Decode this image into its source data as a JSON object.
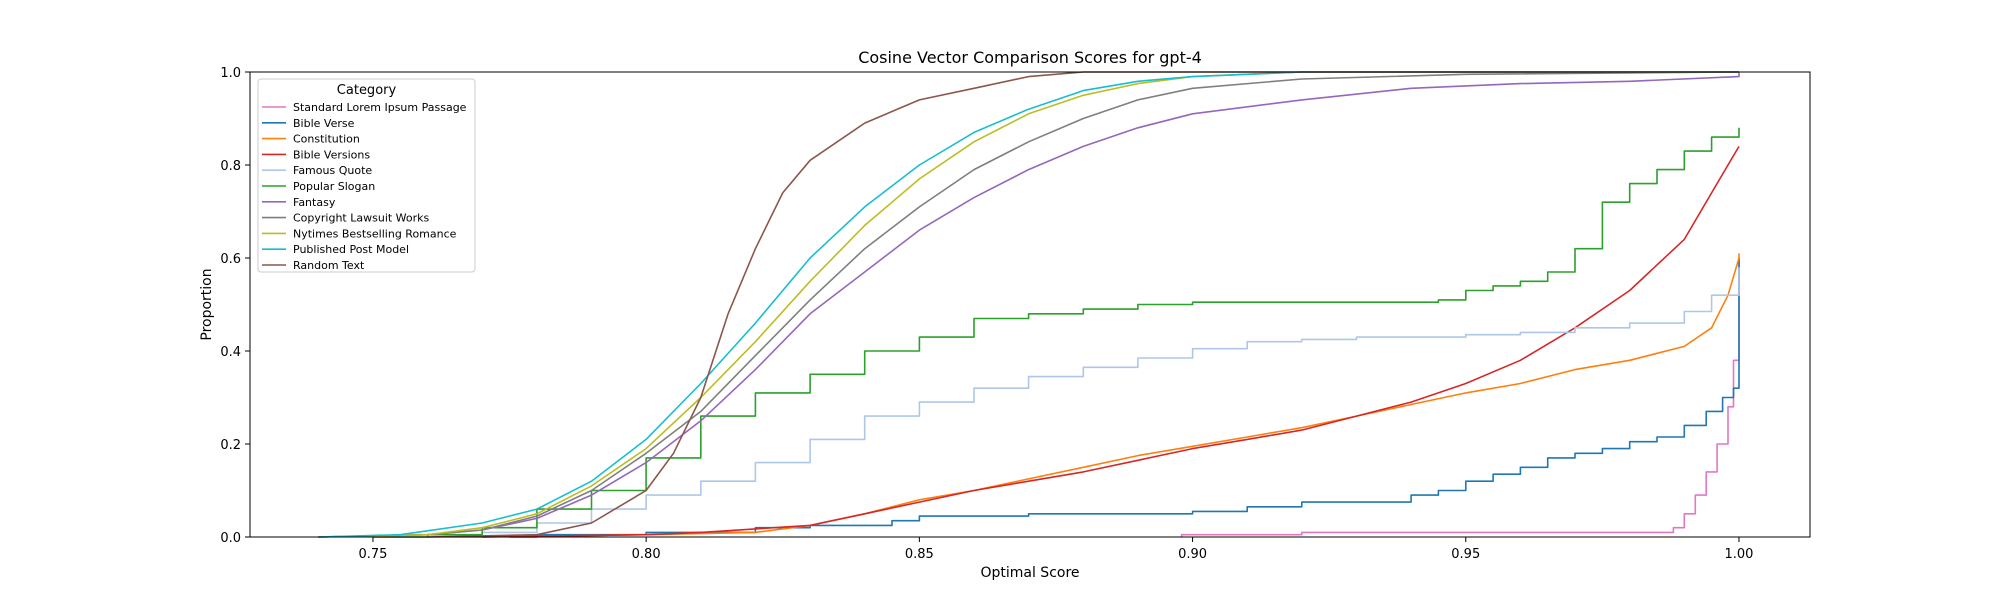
{
  "chart_data": {
    "type": "line",
    "title": "Cosine Vector Comparison Scores for gpt-4",
    "xlabel": "Optimal Score",
    "ylabel": "Proportion",
    "xlim": [
      0.7275,
      1.013
    ],
    "ylim": [
      0.0,
      1.0
    ],
    "xticks": [
      0.75,
      0.8,
      0.85,
      0.9,
      0.95,
      1.0
    ],
    "xtick_labels": [
      "0.75",
      "0.80",
      "0.85",
      "0.90",
      "0.95",
      "1.00"
    ],
    "yticks": [
      0.0,
      0.2,
      0.4,
      0.6,
      0.8,
      1.0
    ],
    "ytick_labels": [
      "0.0",
      "0.2",
      "0.4",
      "0.6",
      "0.8",
      "1.0"
    ],
    "grid": false,
    "legend": {
      "title": "Category",
      "placement": "top-left"
    },
    "series": [
      {
        "name": "Standard Lorem Ipsum Passage",
        "color": "#e377c2",
        "step": true,
        "points": [
          [
            0.898,
            0.0
          ],
          [
            0.898,
            0.005
          ],
          [
            0.92,
            0.005
          ],
          [
            0.92,
            0.01
          ],
          [
            0.986,
            0.01
          ],
          [
            0.988,
            0.02
          ],
          [
            0.99,
            0.05
          ],
          [
            0.992,
            0.09
          ],
          [
            0.994,
            0.14
          ],
          [
            0.996,
            0.2
          ],
          [
            0.998,
            0.28
          ],
          [
            0.999,
            0.38
          ],
          [
            1.0,
            0.4
          ],
          [
            1.0,
            0.6
          ]
        ]
      },
      {
        "name": "Bible Verse",
        "color": "#1f77b4",
        "step": true,
        "points": [
          [
            0.775,
            0.0
          ],
          [
            0.78,
            0.005
          ],
          [
            0.8,
            0.01
          ],
          [
            0.82,
            0.02
          ],
          [
            0.83,
            0.025
          ],
          [
            0.845,
            0.035
          ],
          [
            0.85,
            0.045
          ],
          [
            0.87,
            0.05
          ],
          [
            0.9,
            0.055
          ],
          [
            0.91,
            0.065
          ],
          [
            0.92,
            0.075
          ],
          [
            0.94,
            0.09
          ],
          [
            0.945,
            0.1
          ],
          [
            0.95,
            0.12
          ],
          [
            0.955,
            0.135
          ],
          [
            0.96,
            0.15
          ],
          [
            0.965,
            0.17
          ],
          [
            0.97,
            0.18
          ],
          [
            0.975,
            0.19
          ],
          [
            0.98,
            0.205
          ],
          [
            0.985,
            0.215
          ],
          [
            0.99,
            0.24
          ],
          [
            0.994,
            0.27
          ],
          [
            0.997,
            0.3
          ],
          [
            0.999,
            0.32
          ],
          [
            1.0,
            0.35
          ],
          [
            1.0,
            0.6
          ]
        ]
      },
      {
        "name": "Constitution",
        "color": "#ff7f0e",
        "step": false,
        "points": [
          [
            0.77,
            0.0
          ],
          [
            0.8,
            0.005
          ],
          [
            0.82,
            0.01
          ],
          [
            0.83,
            0.025
          ],
          [
            0.84,
            0.05
          ],
          [
            0.85,
            0.08
          ],
          [
            0.86,
            0.1
          ],
          [
            0.87,
            0.125
          ],
          [
            0.88,
            0.15
          ],
          [
            0.89,
            0.175
          ],
          [
            0.9,
            0.195
          ],
          [
            0.91,
            0.215
          ],
          [
            0.92,
            0.235
          ],
          [
            0.93,
            0.26
          ],
          [
            0.94,
            0.285
          ],
          [
            0.95,
            0.31
          ],
          [
            0.96,
            0.33
          ],
          [
            0.97,
            0.36
          ],
          [
            0.98,
            0.38
          ],
          [
            0.99,
            0.41
          ],
          [
            0.995,
            0.45
          ],
          [
            0.998,
            0.52
          ],
          [
            1.0,
            0.6
          ],
          [
            1.0,
            0.61
          ]
        ]
      },
      {
        "name": "Bible Versions",
        "color": "#d62728",
        "step": false,
        "points": [
          [
            0.77,
            0.0
          ],
          [
            0.8,
            0.005
          ],
          [
            0.81,
            0.01
          ],
          [
            0.83,
            0.025
          ],
          [
            0.84,
            0.05
          ],
          [
            0.85,
            0.075
          ],
          [
            0.86,
            0.1
          ],
          [
            0.87,
            0.12
          ],
          [
            0.88,
            0.14
          ],
          [
            0.89,
            0.165
          ],
          [
            0.9,
            0.19
          ],
          [
            0.91,
            0.21
          ],
          [
            0.92,
            0.23
          ],
          [
            0.93,
            0.26
          ],
          [
            0.94,
            0.29
          ],
          [
            0.95,
            0.33
          ],
          [
            0.96,
            0.38
          ],
          [
            0.97,
            0.45
          ],
          [
            0.98,
            0.53
          ],
          [
            0.99,
            0.64
          ],
          [
            0.995,
            0.74
          ],
          [
            0.998,
            0.8
          ],
          [
            1.0,
            0.84
          ]
        ]
      },
      {
        "name": "Famous Quote",
        "color": "#aec7e8",
        "step": true,
        "points": [
          [
            0.75,
            0.0
          ],
          [
            0.77,
            0.01
          ],
          [
            0.78,
            0.03
          ],
          [
            0.79,
            0.06
          ],
          [
            0.8,
            0.09
          ],
          [
            0.81,
            0.12
          ],
          [
            0.82,
            0.16
          ],
          [
            0.83,
            0.21
          ],
          [
            0.84,
            0.26
          ],
          [
            0.85,
            0.29
          ],
          [
            0.86,
            0.32
          ],
          [
            0.87,
            0.345
          ],
          [
            0.88,
            0.365
          ],
          [
            0.89,
            0.385
          ],
          [
            0.9,
            0.405
          ],
          [
            0.91,
            0.42
          ],
          [
            0.92,
            0.425
          ],
          [
            0.93,
            0.43
          ],
          [
            0.95,
            0.435
          ],
          [
            0.96,
            0.44
          ],
          [
            0.97,
            0.45
          ],
          [
            0.98,
            0.46
          ],
          [
            0.99,
            0.485
          ],
          [
            0.995,
            0.52
          ],
          [
            1.0,
            0.58
          ]
        ]
      },
      {
        "name": "Popular Slogan",
        "color": "#2ca02c",
        "step": true,
        "points": [
          [
            0.75,
            0.0
          ],
          [
            0.76,
            0.005
          ],
          [
            0.77,
            0.02
          ],
          [
            0.78,
            0.06
          ],
          [
            0.79,
            0.1
          ],
          [
            0.8,
            0.17
          ],
          [
            0.81,
            0.26
          ],
          [
            0.82,
            0.31
          ],
          [
            0.83,
            0.35
          ],
          [
            0.84,
            0.4
          ],
          [
            0.85,
            0.43
          ],
          [
            0.86,
            0.47
          ],
          [
            0.87,
            0.48
          ],
          [
            0.88,
            0.49
          ],
          [
            0.89,
            0.5
          ],
          [
            0.9,
            0.505
          ],
          [
            0.945,
            0.51
          ],
          [
            0.95,
            0.53
          ],
          [
            0.955,
            0.54
          ],
          [
            0.96,
            0.55
          ],
          [
            0.965,
            0.57
          ],
          [
            0.97,
            0.62
          ],
          [
            0.975,
            0.72
          ],
          [
            0.98,
            0.76
          ],
          [
            0.985,
            0.79
          ],
          [
            0.99,
            0.83
          ],
          [
            0.995,
            0.86
          ],
          [
            1.0,
            0.88
          ]
        ]
      },
      {
        "name": "Fantasy",
        "color": "#9467bd",
        "step": false,
        "points": [
          [
            0.74,
            0.0
          ],
          [
            0.76,
            0.005
          ],
          [
            0.77,
            0.015
          ],
          [
            0.78,
            0.04
          ],
          [
            0.79,
            0.09
          ],
          [
            0.8,
            0.16
          ],
          [
            0.81,
            0.25
          ],
          [
            0.82,
            0.36
          ],
          [
            0.83,
            0.48
          ],
          [
            0.84,
            0.57
          ],
          [
            0.85,
            0.66
          ],
          [
            0.86,
            0.73
          ],
          [
            0.87,
            0.79
          ],
          [
            0.88,
            0.84
          ],
          [
            0.89,
            0.88
          ],
          [
            0.9,
            0.91
          ],
          [
            0.92,
            0.94
          ],
          [
            0.94,
            0.965
          ],
          [
            0.96,
            0.975
          ],
          [
            0.98,
            0.98
          ],
          [
            1.0,
            0.99
          ],
          [
            1.0,
            1.0
          ]
        ]
      },
      {
        "name": "Copyright Lawsuit Works",
        "color": "#7f7f7f",
        "step": false,
        "points": [
          [
            0.74,
            0.0
          ],
          [
            0.76,
            0.005
          ],
          [
            0.77,
            0.015
          ],
          [
            0.78,
            0.045
          ],
          [
            0.79,
            0.1
          ],
          [
            0.8,
            0.18
          ],
          [
            0.81,
            0.27
          ],
          [
            0.82,
            0.39
          ],
          [
            0.83,
            0.51
          ],
          [
            0.84,
            0.62
          ],
          [
            0.85,
            0.71
          ],
          [
            0.86,
            0.79
          ],
          [
            0.87,
            0.85
          ],
          [
            0.88,
            0.9
          ],
          [
            0.89,
            0.94
          ],
          [
            0.9,
            0.965
          ],
          [
            0.92,
            0.985
          ],
          [
            0.95,
            0.995
          ],
          [
            1.0,
            1.0
          ]
        ]
      },
      {
        "name": "Nytimes Bestselling Romance",
        "color": "#bcbd22",
        "step": false,
        "points": [
          [
            0.74,
            0.0
          ],
          [
            0.76,
            0.005
          ],
          [
            0.77,
            0.02
          ],
          [
            0.78,
            0.05
          ],
          [
            0.79,
            0.11
          ],
          [
            0.8,
            0.19
          ],
          [
            0.81,
            0.3
          ],
          [
            0.82,
            0.42
          ],
          [
            0.83,
            0.55
          ],
          [
            0.84,
            0.67
          ],
          [
            0.85,
            0.77
          ],
          [
            0.86,
            0.85
          ],
          [
            0.87,
            0.91
          ],
          [
            0.88,
            0.95
          ],
          [
            0.89,
            0.975
          ],
          [
            0.9,
            0.99
          ],
          [
            0.92,
            1.0
          ],
          [
            1.0,
            1.0
          ]
        ]
      },
      {
        "name": "Published Post Model",
        "color": "#17becf",
        "step": false,
        "points": [
          [
            0.74,
            0.0
          ],
          [
            0.755,
            0.005
          ],
          [
            0.77,
            0.03
          ],
          [
            0.78,
            0.06
          ],
          [
            0.79,
            0.12
          ],
          [
            0.8,
            0.21
          ],
          [
            0.81,
            0.33
          ],
          [
            0.82,
            0.46
          ],
          [
            0.83,
            0.6
          ],
          [
            0.84,
            0.71
          ],
          [
            0.85,
            0.8
          ],
          [
            0.86,
            0.87
          ],
          [
            0.87,
            0.92
          ],
          [
            0.88,
            0.96
          ],
          [
            0.89,
            0.98
          ],
          [
            0.9,
            0.99
          ],
          [
            0.92,
            1.0
          ],
          [
            1.0,
            1.0
          ]
        ]
      },
      {
        "name": "Random Text",
        "color": "#8c564b",
        "step": false,
        "points": [
          [
            0.76,
            0.0
          ],
          [
            0.78,
            0.005
          ],
          [
            0.79,
            0.03
          ],
          [
            0.8,
            0.1
          ],
          [
            0.805,
            0.18
          ],
          [
            0.81,
            0.3
          ],
          [
            0.815,
            0.48
          ],
          [
            0.82,
            0.62
          ],
          [
            0.825,
            0.74
          ],
          [
            0.83,
            0.81
          ],
          [
            0.84,
            0.89
          ],
          [
            0.85,
            0.94
          ],
          [
            0.86,
            0.965
          ],
          [
            0.87,
            0.99
          ],
          [
            0.88,
            1.0
          ],
          [
            1.0,
            1.0
          ]
        ]
      }
    ]
  }
}
